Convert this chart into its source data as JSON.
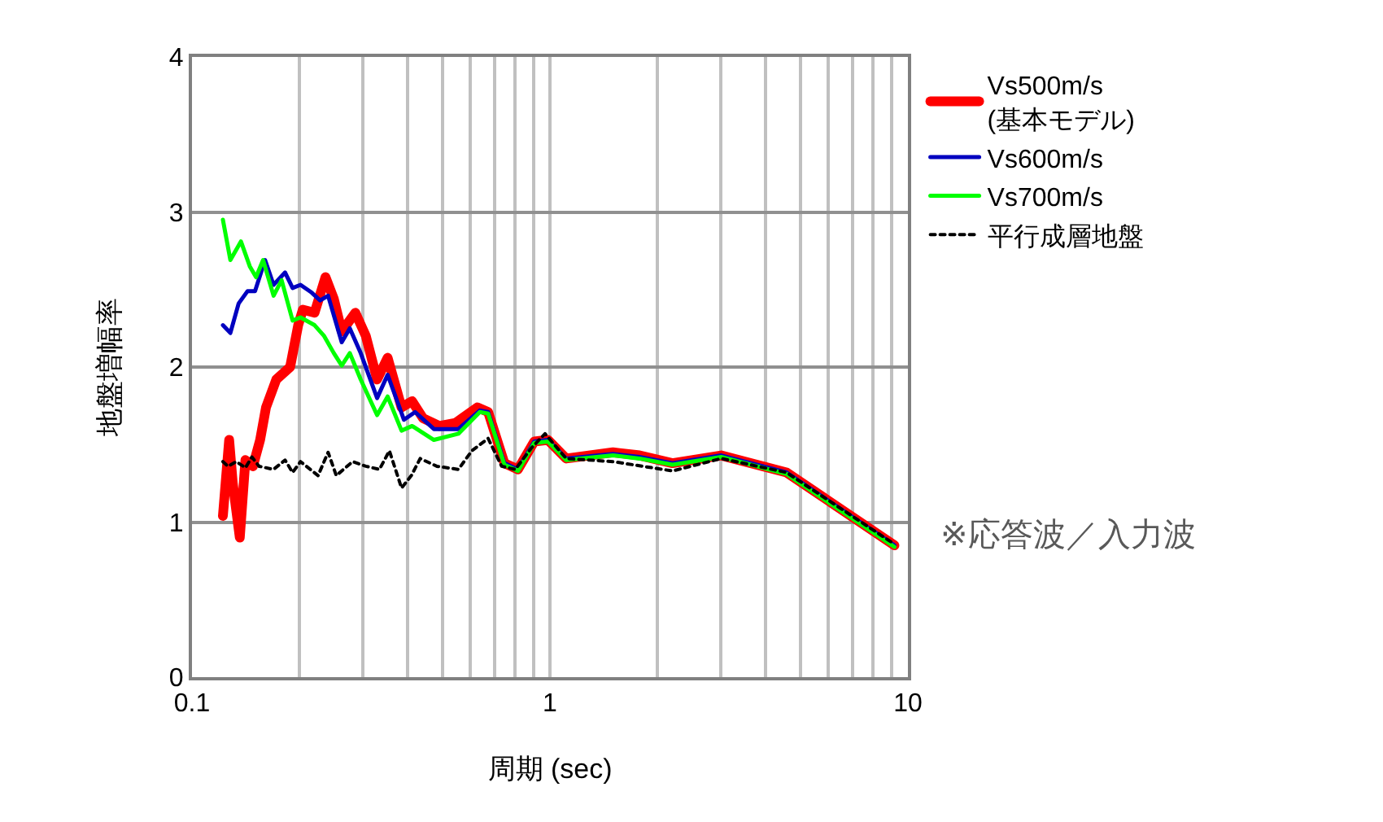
{
  "chart_data": {
    "type": "line",
    "xlabel": "周期 (sec)",
    "ylabel": "地盤増幅率",
    "log": "x",
    "grid": true,
    "legend": "right",
    "xlim": [
      0.1,
      10
    ],
    "ylim": [
      0,
      4
    ],
    "xticks": [
      0.1,
      {
        "value": 0.2,
        "label": null
      },
      {
        "value": 0.3,
        "label": null
      },
      {
        "value": 0.4,
        "label": null
      },
      {
        "value": 0.5,
        "label": null
      },
      {
        "value": 0.6,
        "label": null
      },
      {
        "value": 0.7,
        "label": null
      },
      {
        "value": 0.8,
        "label": null
      },
      {
        "value": 0.9,
        "label": null
      },
      1,
      {
        "value": 2,
        "label": null
      },
      {
        "value": 3,
        "label": null
      },
      {
        "value": 4,
        "label": null
      },
      {
        "value": 5,
        "label": null
      },
      {
        "value": 6,
        "label": null
      },
      {
        "value": 7,
        "label": null
      },
      {
        "value": 8,
        "label": null
      },
      {
        "value": 9,
        "label": null
      },
      10
    ],
    "yticks": [
      0,
      1,
      2,
      3,
      4
    ],
    "annotations": [
      "※応答波／入力波"
    ],
    "series": [
      {
        "name": "Vs500m/s\n(基本モデル)",
        "color": "#ff0000",
        "x": [
          0.122,
          0.127,
          0.13,
          0.136,
          0.141,
          0.148,
          0.155,
          0.161,
          0.172,
          0.188,
          0.198,
          0.204,
          0.22,
          0.236,
          0.249,
          0.262,
          0.286,
          0.306,
          0.329,
          0.352,
          0.385,
          0.412,
          0.442,
          0.491,
          0.545,
          0.627,
          0.672,
          0.746,
          0.814,
          0.904,
          0.987,
          1.11,
          1.5,
          1.78,
          2.2,
          3.01,
          4.58,
          9.17
        ],
        "values": [
          1.04,
          1.53,
          1.25,
          0.9,
          1.4,
          1.36,
          1.53,
          1.74,
          1.92,
          2.0,
          2.27,
          2.37,
          2.35,
          2.58,
          2.44,
          2.23,
          2.35,
          2.2,
          1.92,
          2.06,
          1.74,
          1.78,
          1.67,
          1.62,
          1.64,
          1.74,
          1.71,
          1.38,
          1.34,
          1.52,
          1.53,
          1.41,
          1.45,
          1.43,
          1.38,
          1.43,
          1.32,
          0.85
        ]
      },
      {
        "name": "Vs600m/s",
        "color": "#0000c0",
        "x": [
          0.122,
          0.128,
          0.135,
          0.143,
          0.15,
          0.16,
          0.169,
          0.182,
          0.191,
          0.201,
          0.216,
          0.228,
          0.24,
          0.262,
          0.276,
          0.296,
          0.329,
          0.352,
          0.391,
          0.42,
          0.474,
          0.555,
          0.637,
          0.672,
          0.746,
          0.814,
          0.904,
          0.987,
          1.11,
          1.5,
          1.78,
          2.2,
          3.01,
          4.58,
          9.17
        ],
        "values": [
          2.27,
          2.22,
          2.41,
          2.49,
          2.49,
          2.69,
          2.53,
          2.61,
          2.51,
          2.53,
          2.48,
          2.43,
          2.46,
          2.16,
          2.25,
          2.09,
          1.8,
          1.95,
          1.66,
          1.71,
          1.6,
          1.6,
          1.72,
          1.71,
          1.38,
          1.34,
          1.52,
          1.53,
          1.41,
          1.44,
          1.42,
          1.38,
          1.43,
          1.32,
          0.85
        ]
      },
      {
        "name": "Vs700m/s",
        "color": "#00ff00",
        "x": [
          0.122,
          0.128,
          0.137,
          0.145,
          0.151,
          0.158,
          0.169,
          0.178,
          0.191,
          0.201,
          0.22,
          0.234,
          0.249,
          0.262,
          0.276,
          0.296,
          0.329,
          0.352,
          0.385,
          0.412,
          0.474,
          0.555,
          0.637,
          0.672,
          0.746,
          0.814,
          0.904,
          0.987,
          1.11,
          1.5,
          1.78,
          2.2,
          3.01,
          4.58,
          9.17
        ],
        "values": [
          2.95,
          2.69,
          2.81,
          2.65,
          2.58,
          2.69,
          2.46,
          2.56,
          2.3,
          2.32,
          2.27,
          2.2,
          2.09,
          2.01,
          2.09,
          1.92,
          1.69,
          1.81,
          1.59,
          1.62,
          1.53,
          1.57,
          1.71,
          1.7,
          1.37,
          1.33,
          1.51,
          1.52,
          1.4,
          1.43,
          1.41,
          1.37,
          1.42,
          1.31,
          0.84
        ]
      },
      {
        "name": "平行成層地盤",
        "color": "#000000",
        "line_style": "dotted",
        "x": [
          0.122,
          0.126,
          0.133,
          0.141,
          0.147,
          0.154,
          0.169,
          0.182,
          0.191,
          0.201,
          0.225,
          0.24,
          0.253,
          0.281,
          0.306,
          0.334,
          0.356,
          0.385,
          0.41,
          0.434,
          0.483,
          0.555,
          0.605,
          0.672,
          0.733,
          0.8,
          0.889,
          0.969,
          1.11,
          1.5,
          2.2,
          3.01,
          4.58,
          9.0
        ],
        "values": [
          1.39,
          1.36,
          1.39,
          1.35,
          1.42,
          1.36,
          1.34,
          1.4,
          1.32,
          1.39,
          1.3,
          1.45,
          1.3,
          1.39,
          1.36,
          1.34,
          1.46,
          1.22,
          1.3,
          1.41,
          1.36,
          1.34,
          1.46,
          1.54,
          1.36,
          1.34,
          1.48,
          1.57,
          1.41,
          1.39,
          1.33,
          1.41,
          1.32,
          0.87
        ]
      }
    ]
  }
}
